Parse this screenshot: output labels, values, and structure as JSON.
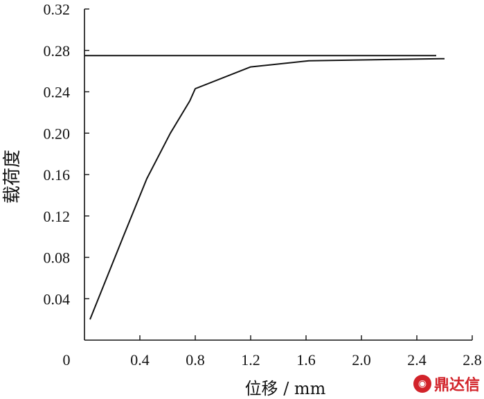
{
  "chart_data": {
    "type": "line",
    "ylabel": "载荷度",
    "xlabel": "位移 / mm",
    "xlim": [
      0,
      2.8
    ],
    "ylim": [
      0,
      0.32
    ],
    "x_ticks": [
      "0",
      "0.4",
      "0.8",
      "1.2",
      "1.6",
      "2.0",
      "2.4",
      "2.8"
    ],
    "y_ticks": [
      "0.04",
      "0.08",
      "0.12",
      "0.16",
      "0.20",
      "0.24",
      "0.28",
      "0.32"
    ],
    "grid": false,
    "series": [
      {
        "values": [
          {
            "x": 0.04,
            "y": 0.02
          },
          {
            "x": 0.28,
            "y": 0.1
          },
          {
            "x": 0.45,
            "y": 0.156
          },
          {
            "x": 0.62,
            "y": 0.2
          },
          {
            "x": 0.76,
            "y": 0.231
          },
          {
            "x": 0.8,
            "y": 0.243
          },
          {
            "x": 1.2,
            "y": 0.264
          },
          {
            "x": 1.62,
            "y": 0.27
          },
          {
            "x": 2.6,
            "y": 0.272
          }
        ]
      },
      {
        "values": [
          {
            "x": 0.0,
            "y": 0.275
          },
          {
            "x": 2.54,
            "y": 0.275
          }
        ]
      }
    ]
  },
  "watermark": {
    "icon": "logo-icon",
    "text": "鼎达信",
    "color": "#d2232a"
  }
}
